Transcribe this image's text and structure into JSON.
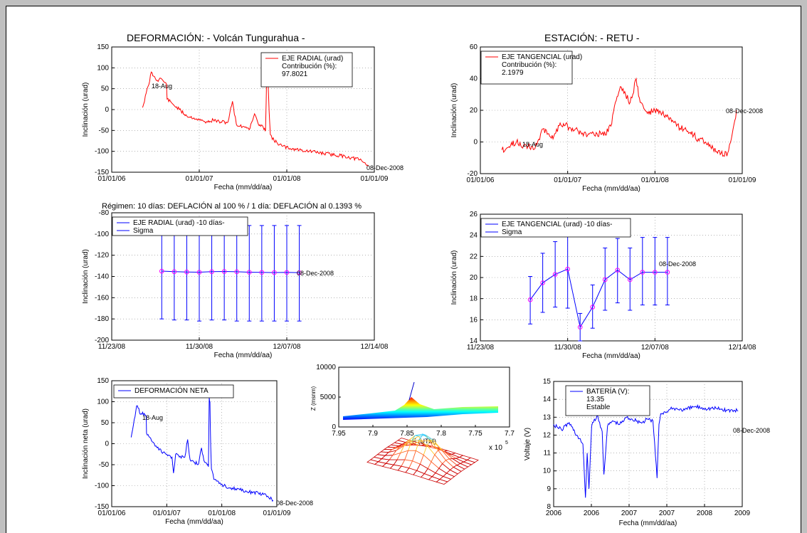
{
  "titles": {
    "left": "DEFORMACIÓN: - Volcán Tungurahua -",
    "right": "ESTACIÓN: - RETU -"
  },
  "regime_text": "Régimen: 10 días: DEFLACIÓN al 100 % / 1 día: DEFLACIÓN al 0.1393 %",
  "colors": {
    "radial": "#ff0000",
    "tangential": "#ff0000",
    "net": "#0000ff",
    "sigma": "#0000ff",
    "marker": "#ff00ff",
    "battery": "#0000ff"
  },
  "chart_data": [
    {
      "id": "radial",
      "type": "line",
      "xlabel": "Fecha (mm/dd/aa)",
      "ylabel": "Inclinación (urad)",
      "xticks": [
        "01/01/06",
        "01/01/07",
        "01/01/08",
        "01/01/09"
      ],
      "yticks": [
        "-150",
        "-100",
        "-50",
        "0",
        "50",
        "100",
        "150"
      ],
      "ylim": [
        -150,
        150
      ],
      "grid": true,
      "legend": [
        "EJE RADIAL (urad)",
        "Contribución (%):",
        "97.8021"
      ],
      "legend_position": "top-right",
      "annotations": [
        "18-Aug",
        "08-Dec-2008"
      ],
      "series": [
        {
          "name": "EJE RADIAL (urad)",
          "x": [
            "2006-05-10",
            "2006-05-25",
            "2006-06-05",
            "2006-06-15",
            "2006-06-25",
            "2006-07-10",
            "2006-07-25",
            "2006-08-10",
            "2006-08-18",
            "2006-08-20",
            "2006-09-10",
            "2006-10-10",
            "2006-11-10",
            "2006-12-10",
            "2007-01-01",
            "2007-01-20",
            "2007-02-05",
            "2007-02-15",
            "2007-03-01",
            "2007-04-01",
            "2007-05-01",
            "2007-05-20",
            "2007-06-05",
            "2007-06-20",
            "2007-07-05",
            "2007-08-01",
            "2007-08-20",
            "2007-09-05",
            "2007-09-15",
            "2007-09-25",
            "2007-10-01",
            "2007-10-05",
            "2007-10-10",
            "2007-10-15",
            "2007-10-20",
            "2007-10-25",
            "2007-11-10",
            "2007-12-15",
            "2008-01-15",
            "2008-03-01",
            "2008-05-01",
            "2008-07-01",
            "2008-09-01",
            "2008-11-01",
            "2008-12-08"
          ],
          "y": [
            5,
            40,
            60,
            90,
            80,
            70,
            75,
            65,
            60,
            25,
            15,
            0,
            -15,
            -20,
            -25,
            -28,
            -30,
            -28,
            -25,
            -30,
            -30,
            20,
            -35,
            -40,
            -40,
            -45,
            -10,
            -35,
            -40,
            -42,
            -45,
            -50,
            90,
            70,
            -5,
            -60,
            -75,
            -88,
            -93,
            -97,
            -102,
            -107,
            -112,
            -120,
            -135
          ]
        }
      ]
    },
    {
      "id": "tangential",
      "type": "line",
      "xlabel": "Fecha (mm/dd/aa)",
      "ylabel": "Inclinación (urad)",
      "xticks": [
        "01/01/06",
        "01/01/07",
        "01/01/08",
        "01/01/09"
      ],
      "yticks": [
        "-20",
        "0",
        "20",
        "40",
        "60"
      ],
      "ylim": [
        -20,
        60
      ],
      "grid": true,
      "legend": [
        "EJE TANGENCIAL (urad)",
        "Contribución (%):",
        "2.1979"
      ],
      "legend_position": "top-left",
      "annotations": [
        "18-Aug",
        "08-Dec-2008"
      ],
      "series": [
        {
          "name": "EJE TANGENCIAL (urad)",
          "x": [
            "2006-04-01",
            "2006-05-01",
            "2006-06-01",
            "2006-07-01",
            "2006-08-18",
            "2006-09-10",
            "2006-10-01",
            "2006-11-01",
            "2006-12-01",
            "2007-01-01",
            "2007-02-01",
            "2007-03-01",
            "2007-04-01",
            "2007-05-01",
            "2007-06-01",
            "2007-07-01",
            "2007-07-20",
            "2007-08-10",
            "2007-09-01",
            "2007-09-20",
            "2007-10-01",
            "2007-10-15",
            "2007-11-01",
            "2007-12-01",
            "2008-01-01",
            "2008-02-01",
            "2008-03-01",
            "2008-04-01",
            "2008-05-01",
            "2008-06-01",
            "2008-07-01",
            "2008-08-01",
            "2008-09-01",
            "2008-10-01",
            "2008-11-01",
            "2008-11-20",
            "2008-12-08"
          ],
          "y": [
            -5,
            -3,
            0,
            -2,
            -4,
            5,
            8,
            2,
            12,
            10,
            8,
            5,
            5,
            6,
            4,
            10,
            25,
            35,
            30,
            25,
            30,
            40,
            25,
            18,
            20,
            18,
            14,
            10,
            8,
            5,
            2,
            0,
            -4,
            -8,
            -7,
            5,
            20
          ]
        }
      ]
    },
    {
      "id": "radial10",
      "type": "line",
      "xlabel": "Fecha (mm/dd/aa)",
      "ylabel": "Inclinación (urad)",
      "xticks": [
        "11/23/08",
        "11/30/08",
        "12/07/08",
        "12/14/08"
      ],
      "yticks": [
        "-200",
        "-180",
        "-160",
        "-140",
        "-120",
        "-100",
        "-80"
      ],
      "ylim": [
        -200,
        -80
      ],
      "grid": true,
      "legend": [
        "EJE RADIAL (urad) -10 días-",
        "Sigma"
      ],
      "legend_position": "top-left",
      "annotations": [
        "08-Dec-2008"
      ],
      "series": [
        {
          "name": "EJE RADIAL (urad) -10 días-",
          "x": [
            "2008-11-27",
            "2008-11-28",
            "2008-11-29",
            "2008-11-30",
            "2008-12-01",
            "2008-12-02",
            "2008-12-03",
            "2008-12-04",
            "2008-12-05",
            "2008-12-06",
            "2008-12-07",
            "2008-12-08"
          ],
          "y": [
            -135,
            -135.5,
            -135.8,
            -136,
            -135.5,
            -135.3,
            -135.6,
            -136,
            -136.2,
            -136.3,
            -136.2,
            -136.4
          ]
        },
        {
          "name": "Sigma",
          "upper": [
            -92,
            -92,
            -92,
            -92,
            -92,
            -92,
            -92,
            -92,
            -92,
            -92,
            -92,
            -92
          ],
          "lower": [
            -180,
            -181,
            -181,
            -182,
            -181,
            -181,
            -182,
            -182,
            -182,
            -182,
            -182,
            -182
          ]
        }
      ]
    },
    {
      "id": "tangential10",
      "type": "line",
      "xlabel": "Fecha (mm/dd/aa)",
      "ylabel": "Inclinación (urad)",
      "xticks": [
        "11/23/08",
        "11/30/08",
        "12/07/08",
        "12/14/08"
      ],
      "yticks": [
        "14",
        "16",
        "18",
        "20",
        "22",
        "24",
        "26"
      ],
      "ylim": [
        14,
        26
      ],
      "grid": true,
      "legend": [
        "EJE TANGENCIAL (urad) -10 días-",
        "Sigma"
      ],
      "legend_position": "top-left",
      "annotations": [
        "08-Dec-2008"
      ],
      "series": [
        {
          "name": "EJE TANGENCIAL (urad) -10 días-",
          "x": [
            "2008-11-27",
            "2008-11-28",
            "2008-11-29",
            "2008-11-30",
            "2008-12-01",
            "2008-12-02",
            "2008-12-03",
            "2008-12-04",
            "2008-12-05",
            "2008-12-06",
            "2008-12-07",
            "2008-12-08"
          ],
          "y": [
            17.9,
            19.5,
            20.3,
            20.8,
            15.3,
            17.2,
            19.8,
            20.7,
            19.8,
            20.5,
            20.5,
            20.5
          ]
        },
        {
          "name": "Sigma",
          "upper": [
            20.1,
            22.3,
            23.4,
            24.5,
            16.6,
            19.3,
            22.8,
            23.7,
            22.8,
            23.8,
            23.8,
            23.8
          ],
          "lower": [
            15.6,
            16.7,
            17.2,
            17.1,
            14.0,
            15.2,
            16.9,
            17.6,
            16.9,
            17.4,
            17.4,
            17.4
          ]
        }
      ]
    },
    {
      "id": "net",
      "type": "line",
      "xlabel": "Fecha (mm/dd/aa)",
      "ylabel": "Inclinación neta (urad)",
      "xticks": [
        "01/01/06",
        "01/01/07",
        "01/01/08",
        "01/01/09"
      ],
      "yticks": [
        "-150",
        "-100",
        "-50",
        "0",
        "50",
        "100",
        "150"
      ],
      "ylim": [
        -150,
        150
      ],
      "grid": true,
      "legend": [
        "DEFORMACIÓN NETA"
      ],
      "legend_position": "top-left",
      "annotations": [
        "18-Aug",
        "08-Dec-2008"
      ],
      "series": [
        {
          "name": "DEFORMACIÓN NETA",
          "x": [
            "2006-05-10",
            "2006-05-25",
            "2006-06-05",
            "2006-06-15",
            "2006-06-25",
            "2006-07-10",
            "2006-07-25",
            "2006-08-10",
            "2006-08-18",
            "2006-08-20",
            "2006-09-10",
            "2006-10-10",
            "2006-11-10",
            "2006-12-10",
            "2007-01-01",
            "2007-01-20",
            "2007-02-05",
            "2007-02-15",
            "2007-03-01",
            "2007-04-01",
            "2007-05-01",
            "2007-05-20",
            "2007-06-05",
            "2007-06-20",
            "2007-07-05",
            "2007-08-01",
            "2007-08-20",
            "2007-09-05",
            "2007-09-15",
            "2007-09-25",
            "2007-10-01",
            "2007-10-05",
            "2007-10-10",
            "2007-10-15",
            "2007-10-20",
            "2007-10-25",
            "2007-11-10",
            "2007-12-15",
            "2008-01-15",
            "2008-03-01",
            "2008-05-01",
            "2008-07-01",
            "2008-09-01",
            "2008-11-01",
            "2008-12-08"
          ],
          "y": [
            15,
            45,
            65,
            90,
            85,
            70,
            75,
            68,
            62,
            25,
            15,
            0,
            -15,
            -20,
            -25,
            -28,
            -32,
            -70,
            -25,
            -30,
            -32,
            10,
            -38,
            -40,
            -45,
            -48,
            -10,
            -40,
            -45,
            -48,
            -50,
            -55,
            110,
            100,
            -5,
            -60,
            -85,
            -95,
            -100,
            -105,
            -110,
            -115,
            -118,
            -125,
            -135
          ]
        }
      ]
    },
    {
      "id": "elevation",
      "type": "area",
      "xlabel": "E (UTM)",
      "ylabel": "Z (msnm)",
      "xticks": [
        "7.95",
        "7.9",
        "7.85",
        "7.8",
        "7.75",
        "7.7"
      ],
      "yticks": [
        "0",
        "5000",
        "10000"
      ],
      "x_exponent": "x 10",
      "x_exponent_power": "5",
      "ylim": [
        0,
        10000
      ],
      "xlim": [
        7.95,
        7.7
      ]
    },
    {
      "id": "battery",
      "type": "line",
      "xlabel": "Fecha (mm/dd/aa)",
      "ylabel": "Voltaje (V)",
      "xticks": [
        "2006",
        "2006",
        "2007",
        "2007",
        "2008",
        "2009"
      ],
      "yticks": [
        "8",
        "9",
        "10",
        "11",
        "12",
        "13",
        "14",
        "15"
      ],
      "ylim": [
        8,
        15
      ],
      "grid": true,
      "legend": [
        "BATERÍA (V):",
        "13.35",
        "Estable"
      ],
      "legend_position": "top-left",
      "annotations": [
        "08-Dec-2008"
      ],
      "series": [
        {
          "name": "BATERÍA (V):",
          "x": [
            "2006-01-01",
            "2006-02-15",
            "2006-04-01",
            "2006-05-15",
            "2006-06-20",
            "2006-07-05",
            "2006-07-15",
            "2006-07-25",
            "2006-08-10",
            "2006-09-10",
            "2006-10-10",
            "2006-10-20",
            "2006-11-10",
            "2006-12-10",
            "2007-01-20",
            "2007-03-01",
            "2007-04-01",
            "2007-05-01",
            "2007-06-01",
            "2007-07-01",
            "2007-08-01",
            "2007-08-25",
            "2007-09-05",
            "2007-09-15",
            "2007-10-10",
            "2007-12-01",
            "2008-02-01",
            "2008-04-01",
            "2008-06-01",
            "2008-08-01",
            "2008-10-01",
            "2008-12-08"
          ],
          "y": [
            12.6,
            12.3,
            12.7,
            12.0,
            11.5,
            8.5,
            11.0,
            9.0,
            12.5,
            13.1,
            12.2,
            9.8,
            12.5,
            12.8,
            12.6,
            13.0,
            12.9,
            12.8,
            12.7,
            12.9,
            12.8,
            9.6,
            12.6,
            13.2,
            13.3,
            13.5,
            13.4,
            13.6,
            13.5,
            13.5,
            13.4,
            13.35
          ]
        }
      ]
    }
  ]
}
